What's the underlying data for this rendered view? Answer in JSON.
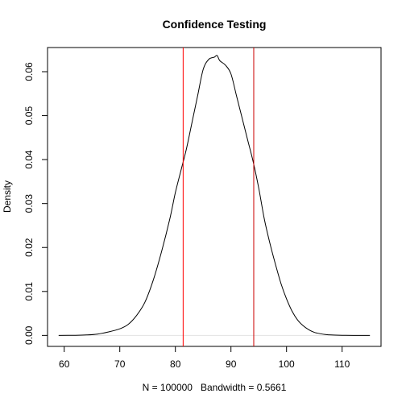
{
  "chart_data": {
    "type": "line",
    "title": "Confidence Testing",
    "xlabel": "N = 100000   Bandwidth = 0.5661",
    "ylabel": "Density",
    "xlim": [
      57,
      117
    ],
    "ylim": [
      -0.0025,
      0.0655
    ],
    "x_ticks": [
      60,
      70,
      80,
      90,
      100,
      110
    ],
    "y_ticks": [
      0.0,
      0.01,
      0.02,
      0.03,
      0.04,
      0.05,
      0.06
    ],
    "y_tick_labels": [
      "0.00",
      "0.01",
      "0.02",
      "0.03",
      "0.04",
      "0.05",
      "0.06"
    ],
    "grid": false,
    "zero_line": true,
    "series": [
      {
        "color": "#000000",
        "x": [
          59,
          62,
          64,
          66,
          68,
          70,
          71.5,
          73,
          74.5,
          76,
          77.5,
          79,
          80,
          81,
          82,
          83,
          84,
          85,
          86,
          87,
          87.5,
          88,
          89,
          90,
          91,
          92,
          93,
          94,
          95,
          96,
          97,
          98,
          99,
          100,
          101,
          102,
          103,
          104,
          105,
          106,
          107,
          108,
          110,
          112,
          115
        ],
        "y": [
          0.0,
          3e-05,
          0.0001,
          0.0003,
          0.0008,
          0.0015,
          0.0025,
          0.0045,
          0.0075,
          0.0125,
          0.019,
          0.0265,
          0.0325,
          0.0375,
          0.0425,
          0.0485,
          0.0545,
          0.0605,
          0.0628,
          0.0633,
          0.0637,
          0.0625,
          0.0615,
          0.0595,
          0.0545,
          0.0495,
          0.0445,
          0.0395,
          0.0335,
          0.0265,
          0.021,
          0.0162,
          0.0118,
          0.0083,
          0.0055,
          0.0035,
          0.0022,
          0.0013,
          0.0007,
          0.0004,
          0.0002,
          0.0001,
          3e-05,
          0.0,
          0.0
        ]
      }
    ],
    "vlines": [
      {
        "x": 81.4,
        "color": "#ff0000"
      },
      {
        "x": 94.1,
        "color": "#cc0000"
      }
    ]
  }
}
